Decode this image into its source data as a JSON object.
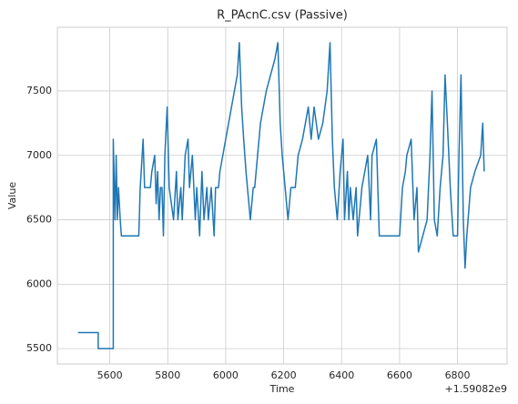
{
  "chart_data": {
    "type": "line",
    "title": "R_PAcnC.csv (Passive)",
    "xlabel": "Time",
    "ylabel": "Value",
    "x_offset_label": "+1.59082e9",
    "color": "#1f77b4",
    "grid": true,
    "xlim": [
      5419,
      6971
    ],
    "xticks": [
      5600,
      5800,
      6000,
      6200,
      6400,
      6600,
      6800
    ],
    "ylim": [
      5381,
      7994
    ],
    "yticks": [
      5500,
      6000,
      6500,
      7000,
      7500
    ],
    "x": [
      5490,
      5560,
      5560,
      5612,
      5612,
      5618,
      5622,
      5626,
      5630,
      5636,
      5640,
      5700,
      5705,
      5715,
      5720,
      5740,
      5745,
      5755,
      5760,
      5765,
      5770,
      5775,
      5780,
      5785,
      5790,
      5798,
      5805,
      5820,
      5830,
      5835,
      5845,
      5850,
      5860,
      5870,
      5875,
      5885,
      5895,
      5900,
      5910,
      5918,
      5925,
      5935,
      5940,
      5950,
      5960,
      5965,
      5975,
      5980,
      6000,
      6010,
      6020,
      6030,
      6040,
      6047,
      6055,
      6062,
      6070,
      6075,
      6085,
      6095,
      6100,
      6110,
      6120,
      6130,
      6140,
      6155,
      6170,
      6180,
      6188,
      6195,
      6205,
      6215,
      6225,
      6240,
      6250,
      6265,
      6275,
      6285,
      6295,
      6305,
      6320,
      6335,
      6350,
      6360,
      6368,
      6375,
      6385,
      6395,
      6405,
      6410,
      6420,
      6425,
      6430,
      6440,
      6450,
      6455,
      6470,
      6480,
      6490,
      6500,
      6505,
      6520,
      6530,
      6600,
      6610,
      6620,
      6625,
      6640,
      6650,
      6660,
      6665,
      6680,
      6695,
      6705,
      6712,
      6720,
      6730,
      6740,
      6750,
      6757,
      6765,
      6775,
      6785,
      6800,
      6805,
      6812,
      6820,
      6826,
      6832,
      6845,
      6860,
      6880,
      6887,
      6892
    ],
    "values": [
      5625,
      5625,
      5500,
      5500,
      7125,
      6500,
      7000,
      6500,
      6750,
      6500,
      6375,
      6375,
      6750,
      7125,
      6750,
      6750,
      6875,
      7000,
      6625,
      6875,
      6500,
      6750,
      6750,
      6375,
      7000,
      7375,
      6750,
      6500,
      6875,
      6500,
      6750,
      6500,
      7000,
      7125,
      6750,
      7000,
      6500,
      6750,
      6375,
      6875,
      6500,
      6750,
      6500,
      6750,
      6375,
      6750,
      6750,
      6875,
      7125,
      7250,
      7375,
      7500,
      7625,
      7875,
      7375,
      7125,
      6875,
      6750,
      6500,
      6750,
      6750,
      7000,
      7250,
      7375,
      7500,
      7625,
      7750,
      7875,
      7250,
      7000,
      6750,
      6500,
      6750,
      6750,
      7000,
      7125,
      7250,
      7375,
      7125,
      7375,
      7125,
      7250,
      7500,
      7875,
      7125,
      6750,
      6500,
      6875,
      7125,
      6500,
      6875,
      6500,
      6750,
      6500,
      6750,
      6375,
      6750,
      6875,
      7000,
      6500,
      7000,
      7125,
      6375,
      6375,
      6750,
      6875,
      7000,
      7125,
      6500,
      6750,
      6250,
      6375,
      6500,
      7000,
      7500,
      6500,
      6375,
      6750,
      7000,
      7625,
      7250,
      6750,
      6375,
      6375,
      7000,
      7625,
      6500,
      6125,
      6375,
      6750,
      6875,
      7000,
      7250,
      6875
    ]
  }
}
